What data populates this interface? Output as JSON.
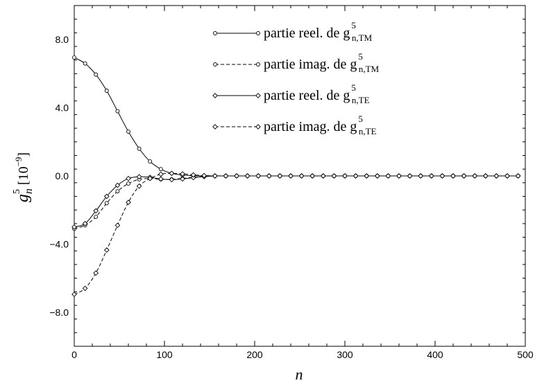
{
  "chart_data": {
    "type": "line",
    "xlabel": "n",
    "ylabel": {
      "base": "g",
      "subscript": "n",
      "superscript": "5",
      "unit": "[10",
      "unit_exp": "−9",
      "unit_close": "]"
    },
    "xlim": [
      0,
      500
    ],
    "ylim": [
      -10,
      10
    ],
    "xticks": [
      0,
      100,
      200,
      300,
      400,
      500
    ],
    "xtick_labels": [
      "0",
      "100",
      "200",
      "300",
      "400",
      "500"
    ],
    "yticks": [
      -8,
      -4,
      0,
      4,
      8
    ],
    "ytick_labels": [
      "−8.0",
      "−4.0",
      "0.0",
      "4.0",
      "8.0"
    ],
    "grid": false,
    "legend_position": "top-right",
    "x": [
      0,
      12,
      24,
      36,
      48,
      60,
      72,
      84,
      96,
      108,
      120,
      132,
      144,
      156,
      168,
      180,
      192,
      204,
      216,
      228,
      240,
      252,
      264,
      276,
      288,
      300,
      312,
      324,
      336,
      348,
      360,
      372,
      384,
      396,
      408,
      420,
      432,
      444,
      456,
      468,
      480,
      492
    ],
    "series": [
      {
        "name": "partie reel. de g",
        "sup": "5",
        "sub": "n,TM",
        "style": "solid",
        "marker": "circle",
        "values": [
          6.95,
          6.6,
          5.95,
          5.0,
          3.8,
          2.6,
          1.6,
          0.85,
          0.4,
          0.15,
          0.05,
          0.02,
          0.0,
          0,
          0,
          0,
          0,
          0,
          0,
          0,
          0,
          0,
          0,
          0,
          0,
          0,
          0,
          0,
          0,
          0,
          0,
          0,
          0,
          0,
          0,
          0,
          0,
          0,
          0,
          0,
          0,
          0
        ]
      },
      {
        "name": "partie imag. de g",
        "sup": "5",
        "sub": "n,TM",
        "style": "dashed",
        "marker": "circle",
        "values": [
          -3.1,
          -2.9,
          -2.4,
          -1.6,
          -0.9,
          -0.45,
          -0.2,
          -0.15,
          -0.2,
          -0.2,
          -0.15,
          -0.08,
          -0.03,
          0,
          0,
          0,
          0,
          0,
          0,
          0,
          0,
          0,
          0,
          0,
          0,
          0,
          0,
          0,
          0,
          0,
          0,
          0,
          0,
          0,
          0,
          0,
          0,
          0,
          0,
          0,
          0,
          0
        ]
      },
      {
        "name": "partie reel. de g",
        "sup": "5",
        "sub": "n,TE",
        "style": "solid",
        "marker": "diamond",
        "values": [
          -3.0,
          -2.8,
          -2.05,
          -1.2,
          -0.55,
          -0.15,
          -0.05,
          -0.08,
          -0.18,
          -0.22,
          -0.18,
          -0.1,
          -0.04,
          0,
          0,
          0,
          0,
          0,
          0,
          0,
          0,
          0,
          0,
          0,
          0,
          0,
          0,
          0,
          0,
          0,
          0,
          0,
          0,
          0,
          0,
          0,
          0,
          0,
          0,
          0,
          0,
          0
        ]
      },
      {
        "name": "partie imag. de g",
        "sup": "5",
        "sub": "n,TE",
        "style": "dashed",
        "marker": "diamond",
        "values": [
          -6.95,
          -6.6,
          -5.7,
          -4.35,
          -2.9,
          -1.55,
          -0.6,
          -0.15,
          0.1,
          0.15,
          0.12,
          0.06,
          0.02,
          0,
          0,
          0,
          0,
          0,
          0,
          0,
          0,
          0,
          0,
          0,
          0,
          0,
          0,
          0,
          0,
          0,
          0,
          0,
          0,
          0,
          0,
          0,
          0,
          0,
          0,
          0,
          0,
          0
        ]
      }
    ]
  }
}
